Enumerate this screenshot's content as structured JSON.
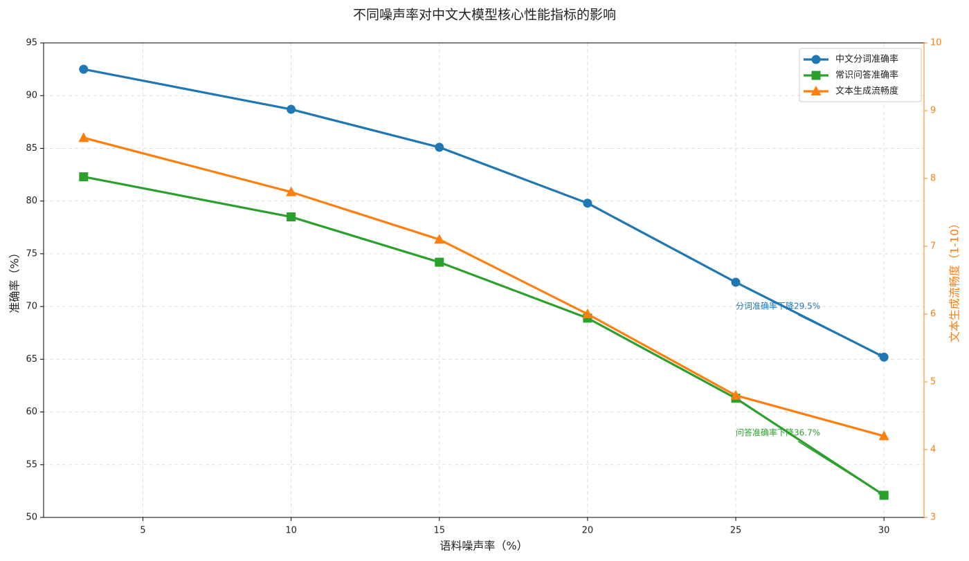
{
  "chart_data": {
    "type": "line",
    "title": "不同噪声率对中文大模型核心性能指标的影响",
    "x_label": "语料噪声率（%）",
    "y_label": "准确率（%）",
    "y2_label": "文本生成流畅度（1-10）",
    "x": [
      3,
      10,
      15,
      20,
      25,
      30
    ],
    "series": [
      {
        "name": "中文分词准确率",
        "color": "#1f77b4",
        "marker": "circle",
        "values": [
          92.5,
          88.7,
          85.1,
          79.8,
          72.3,
          65.2
        ]
      },
      {
        "name": "常识问答准确率",
        "color": "#2ca02c",
        "marker": "square",
        "values": [
          82.3,
          78.5,
          74.2,
          68.9,
          61.3,
          52.1
        ]
      },
      {
        "name": "文本生成流畅度",
        "color": "#ff7f0e",
        "marker": "triangle",
        "axis": "y2",
        "values": [
          8.6,
          7.8,
          7.1,
          6.0,
          4.8,
          4.2
        ]
      }
    ],
    "xlim": [
      1.65,
      31.35
    ],
    "xticks": [
      5,
      10,
      15,
      20,
      25,
      30
    ],
    "ylim": [
      50,
      95
    ],
    "yticks": [
      50,
      55,
      60,
      65,
      70,
      75,
      80,
      85,
      90,
      95
    ],
    "y2lim": [
      3,
      10
    ],
    "y2ticks": [
      3,
      4,
      5,
      6,
      7,
      8,
      9,
      10
    ],
    "y2_color": "#ff7f0e",
    "grid": true,
    "legend": "upper right",
    "annotations": [
      {
        "text": "分词准确率下降29.5%",
        "color": "#1f77b4",
        "x": 25,
        "y": 70,
        "target_x": 30,
        "target_y": 65.2
      },
      {
        "text": "问答准确率下降36.7%",
        "color": "#2ca02c",
        "x": 25,
        "y": 58,
        "target_x": 30,
        "target_y": 52.1
      }
    ]
  }
}
